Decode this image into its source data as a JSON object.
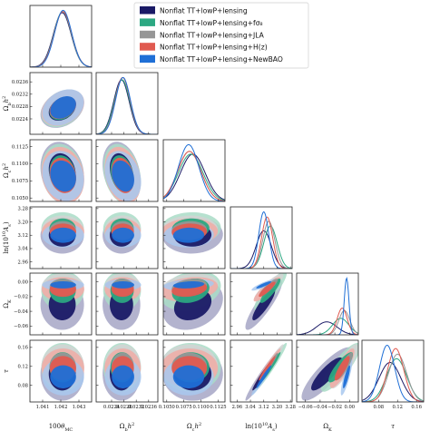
{
  "chart_data": {
    "type": "scatter",
    "subtype": "triangle corner plot (1D marginal posteriors + 2D 68%/95% confidence contours)",
    "parameters": [
      "100θ_MC",
      "Ω_b h²",
      "Ω_c h²",
      "ln(10¹⁰ A_s)",
      "Ω_K",
      "τ"
    ],
    "axis_labels": [
      "100θ_{MC}",
      "Ω_b h²",
      "Ω_c h²",
      "ln(10¹⁰ A_s)",
      "Ω_K",
      "τ"
    ],
    "ranges": [
      [
        1.0403,
        1.0437
      ],
      [
        0.0219,
        0.0239
      ],
      [
        0.1045,
        0.1135
      ],
      [
        2.92,
        3.29
      ],
      [
        -0.072,
        0.012
      ],
      [
        0.045,
        0.175
      ]
    ],
    "ticks": [
      {
        "values": [
          1.041,
          1.042,
          1.043
        ],
        "labels": [
          "1.041",
          "1.042",
          "1.043"
        ]
      },
      {
        "values": [
          0.0224,
          0.0228,
          0.0232,
          0.0236
        ],
        "labels": [
          "0.0224",
          "0.0228",
          "0.0232",
          "0.0236"
        ]
      },
      {
        "values": [
          0.105,
          0.1075,
          0.11,
          0.1125
        ],
        "labels": [
          "0.1050",
          "0.1075",
          "0.1100",
          "0.1125"
        ]
      },
      {
        "values": [
          2.96,
          3.04,
          3.12,
          3.2,
          3.28
        ],
        "labels": [
          "2.96",
          "3.04",
          "3.12",
          "3.20",
          "3.28"
        ]
      },
      {
        "values": [
          -0.06,
          -0.04,
          -0.02,
          0.0
        ],
        "labels": [
          "−0.06",
          "−0.04",
          "−0.02",
          "0.00"
        ]
      },
      {
        "values": [
          0.08,
          0.12,
          0.16
        ],
        "labels": [
          "0.08",
          "0.12",
          "0.16"
        ]
      }
    ],
    "series": [
      {
        "name": "Nonflat TT+lowP+lensing",
        "color": "#1a1a66",
        "fill": "#a6a6c6",
        "mean": [
          1.04208,
          0.02272,
          0.1088,
          3.12,
          -0.031,
          0.104
        ],
        "sigma": [
          0.00049,
          0.00025,
          0.0018,
          0.045,
          0.014,
          0.023
        ]
      },
      {
        "name": "Nonflat TT+lowP+lensing+fσ₈",
        "color": "#2ca882",
        "fill": "#a9dcc7",
        "mean": [
          1.0421,
          0.02274,
          0.1085,
          3.16,
          -0.012,
          0.118
        ],
        "sigma": [
          0.00048,
          0.00025,
          0.0018,
          0.04,
          0.011,
          0.021
        ]
      },
      {
        "name": "Nonflat TT+lowP+lensing+JLA",
        "color": "#969696",
        "fill": "#d4d4d4",
        "mean": [
          1.04211,
          0.02276,
          0.1083,
          3.15,
          -0.007,
          0.12
        ],
        "sigma": [
          0.00048,
          0.00024,
          0.0017,
          0.036,
          0.0075,
          0.019
        ]
      },
      {
        "name": "Nonflat TT+lowP+lensing+H(z)",
        "color": "#e05a50",
        "fill": "#f0aca6",
        "mean": [
          1.04212,
          0.02276,
          0.1083,
          3.14,
          -0.01,
          0.116
        ],
        "sigma": [
          0.00048,
          0.00024,
          0.0017,
          0.033,
          0.0068,
          0.017
        ]
      },
      {
        "name": "Nonflat TT+lowP+lensing+NewBAO",
        "color": "#1f6fd6",
        "fill": "#a8c8ee",
        "mean": [
          1.04213,
          0.02277,
          0.1082,
          3.12,
          -0.004,
          0.098
        ],
        "sigma": [
          0.00047,
          0.00024,
          0.0015,
          0.03,
          0.0032,
          0.016
        ]
      }
    ],
    "correlations": [
      {
        "pair": [
          0,
          1
        ],
        "rho": 0.3
      },
      {
        "pair": [
          0,
          2
        ],
        "rho": -0.15
      },
      {
        "pair": [
          1,
          2
        ],
        "rho": -0.25
      },
      {
        "pair": [
          2,
          3
        ],
        "rho": 0.05
      },
      {
        "pair": [
          2,
          4
        ],
        "rho": 0.25
      },
      {
        "pair": [
          3,
          4
        ],
        "rho": 0.88
      },
      {
        "pair": [
          3,
          5
        ],
        "rho": 0.97
      },
      {
        "pair": [
          4,
          5
        ],
        "rho": 0.85
      }
    ],
    "contour_levels": [
      "68%",
      "95%"
    ],
    "legend_position": "top-right",
    "legend": [
      {
        "label": "Nonflat TT+lowP+lensing",
        "color": "#1a1a66"
      },
      {
        "label": "Nonflat TT+lowP+lensing+fσ₈",
        "color": "#2ca882"
      },
      {
        "label": "Nonflat TT+lowP+lensing+JLA",
        "color": "#969696"
      },
      {
        "label": "Nonflat TT+lowP+lensing+H(z)",
        "color": "#e05a50"
      },
      {
        "label": "Nonflat TT+lowP+lensing+NewBAO",
        "color": "#1f6fd6"
      }
    ]
  }
}
